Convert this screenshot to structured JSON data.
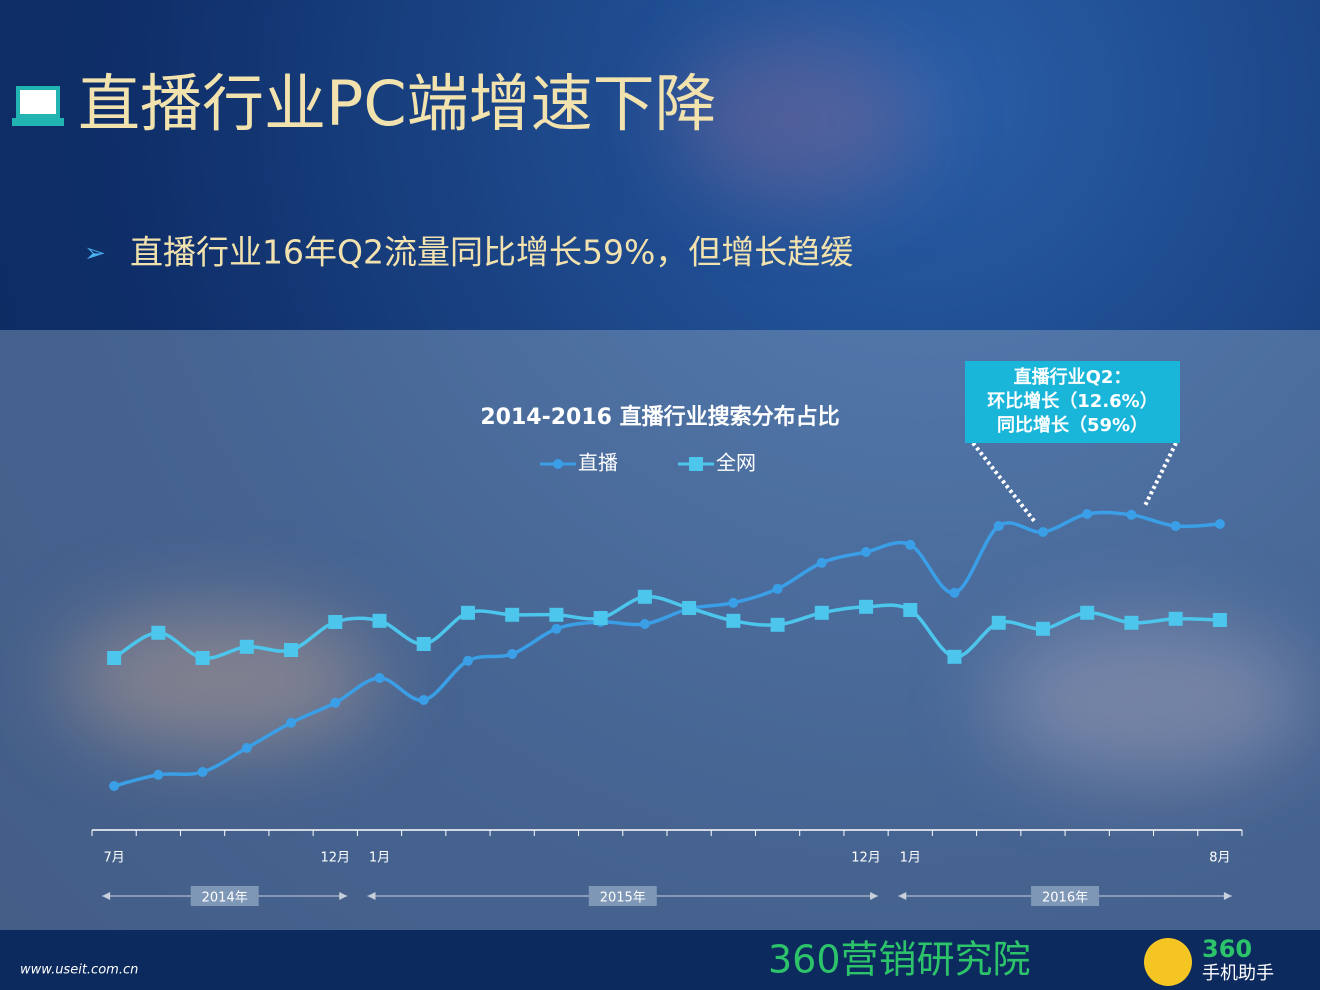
{
  "slide_title": "直播行业PC端增速下降",
  "bullet": "直播行业16年Q2流量同比增长59%，但增长趋缓",
  "chart_data": {
    "type": "line",
    "title": "2014-2016 直播行业搜索分布占比",
    "categories": [
      "7月",
      null,
      null,
      null,
      null,
      "12月",
      "1月",
      null,
      null,
      null,
      null,
      null,
      null,
      null,
      null,
      null,
      null,
      "12月",
      "1月",
      null,
      null,
      null,
      null,
      null,
      null,
      "8月"
    ],
    "series": [
      {
        "name": "直播",
        "color": "#3a9fe6",
        "marker": "circle",
        "values": [
          11,
          13.8,
          14.5,
          20.5,
          26.8,
          31.8,
          38,
          32.5,
          42.3,
          44,
          50.3,
          52,
          51.5,
          55.3,
          56.8,
          60.3,
          66.8,
          69.5,
          71.3,
          59.3,
          76,
          74.5,
          79,
          78.8,
          76,
          76.5
        ]
      },
      {
        "name": "全网",
        "color": "#4cc6ec",
        "marker": "square",
        "values": [
          43,
          49.3,
          43,
          45.8,
          45,
          52,
          52.3,
          46.5,
          54.3,
          53.8,
          53.8,
          53,
          58.3,
          55.5,
          52.3,
          51.3,
          54.3,
          55.8,
          55,
          43.3,
          51.8,
          50.3,
          54.3,
          51.8,
          52.8,
          52.5
        ]
      }
    ],
    "ylim": [
      0,
      100
    ],
    "periods": [
      {
        "label": "2014年",
        "from": 0,
        "to": 5
      },
      {
        "label": "2015年",
        "from": 6,
        "to": 17
      },
      {
        "label": "2016年",
        "from": 18,
        "to": 25
      }
    ],
    "annotation": {
      "lines": [
        "直播行业Q2：",
        "环比增长（12.6%）",
        "同比增长（59%）"
      ],
      "points": [
        21,
        23
      ]
    }
  },
  "footer": {
    "url": "www.useit.com.cn",
    "brand": "360营销研究院",
    "logo_number": "360",
    "logo_text": "手机助手"
  }
}
